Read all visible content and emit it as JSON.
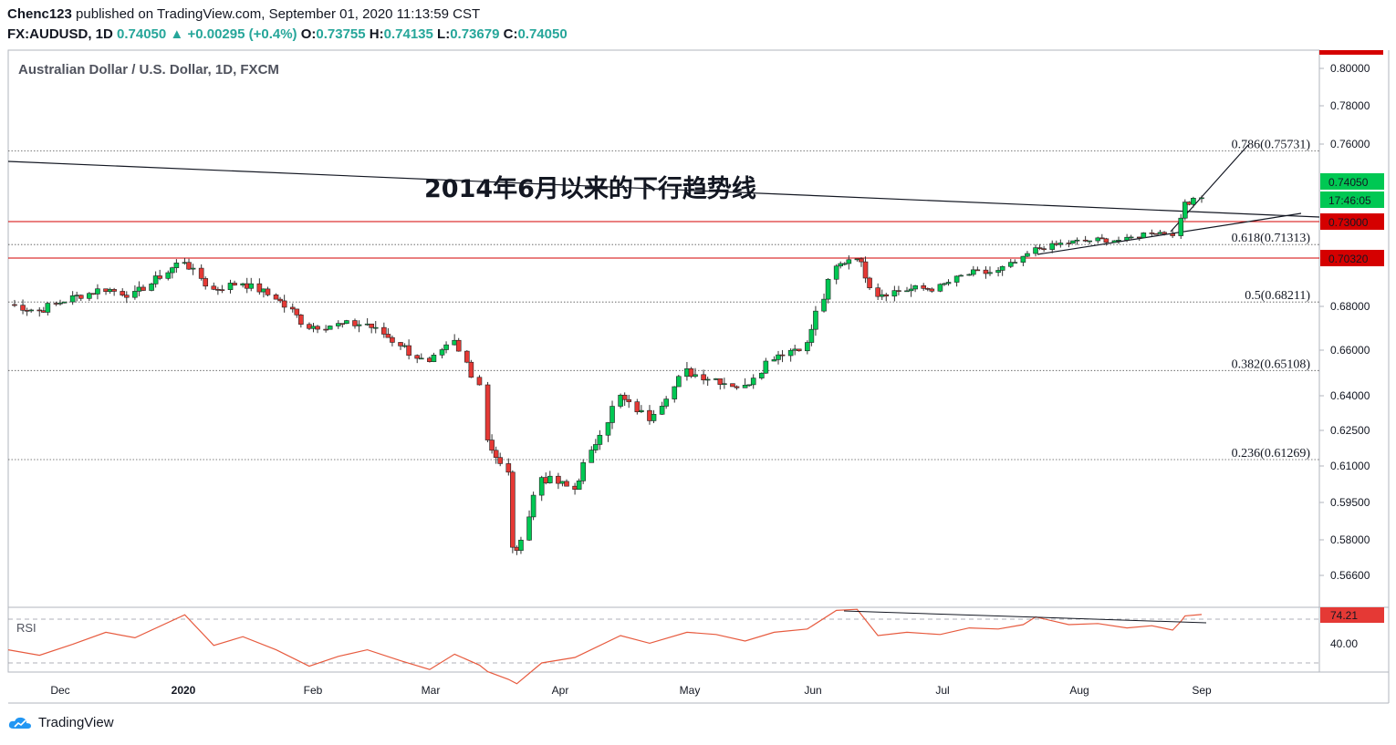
{
  "header": {
    "publisher": "Chenc123",
    "published_text": "published on TradingView.com, September 01, 2020 11:13:59 CST",
    "symbol": "FX:AUDUSD, 1D",
    "last": "0.74050",
    "change": "+0.00295 (+0.4%)",
    "open_label": "O:",
    "open": "0.73755",
    "high_label": "H:",
    "high": "0.74135",
    "low_label": "L:",
    "low": "0.73679",
    "close_label": "C:",
    "close": "0.74050"
  },
  "footer": {
    "brand": "TradingView"
  },
  "colors": {
    "up": "#26a69a",
    "candle_up": "#00c853",
    "candle_down": "#e53935",
    "level_red": "#d50000",
    "rsi_line": "#e75b3f"
  },
  "chart_data": [
    {
      "type": "candlestick",
      "title": "Australian Dollar / U.S. Dollar, 1D, FXCM",
      "annotation": "2014年6月以来的下行趋势线",
      "price_axis_ticks": [
        "0.80000",
        "0.78000",
        "0.76000",
        "0.74050",
        "0.73000",
        "0.70320",
        "0.68000",
        "0.66000",
        "0.64000",
        "0.62500",
        "0.61000",
        "0.59500",
        "0.58000",
        "0.56600"
      ],
      "time_axis_labels": [
        "Dec",
        "2020",
        "Feb",
        "Mar",
        "Apr",
        "May",
        "Jun",
        "Jul",
        "Aug",
        "Sep"
      ],
      "price_badges": [
        {
          "text": "0.74050",
          "kind": "last",
          "color": "#00c853"
        },
        {
          "text": "17:46:05",
          "kind": "countdown",
          "color": "#00c853"
        },
        {
          "text": "0.73000",
          "kind": "level",
          "color": "#d50000"
        },
        {
          "text": "0.70320",
          "kind": "level",
          "color": "#d50000"
        }
      ],
      "horizontal_levels": [
        0.73,
        0.7032
      ],
      "fibonacci": [
        {
          "label": "0.786(0.75731)",
          "price": 0.75731
        },
        {
          "label": "0.618(0.71313)",
          "price": 0.71313
        },
        {
          "label": "0.5(0.68211)",
          "price": 0.68211
        },
        {
          "label": "0.382(0.65108)",
          "price": 0.65108
        },
        {
          "label": "0.236(0.61269)",
          "price": 0.61269
        }
      ],
      "close_path": [
        {
          "date": "2019-11-18",
          "close": 0.6815
        },
        {
          "date": "2019-11-26",
          "close": 0.678
        },
        {
          "date": "2019-12-04",
          "close": 0.684
        },
        {
          "date": "2019-12-12",
          "close": 0.6885
        },
        {
          "date": "2019-12-19",
          "close": 0.6855
        },
        {
          "date": "2019-12-31",
          "close": 0.702
        },
        {
          "date": "2020-01-07",
          "close": 0.688
        },
        {
          "date": "2020-01-14",
          "close": 0.6915
        },
        {
          "date": "2020-01-22",
          "close": 0.6845
        },
        {
          "date": "2020-01-30",
          "close": 0.671
        },
        {
          "date": "2020-02-06",
          "close": 0.6715
        },
        {
          "date": "2020-02-13",
          "close": 0.672
        },
        {
          "date": "2020-02-21",
          "close": 0.663
        },
        {
          "date": "2020-02-28",
          "close": 0.6535
        },
        {
          "date": "2020-03-05",
          "close": 0.6635
        },
        {
          "date": "2020-03-11",
          "close": 0.6455
        },
        {
          "date": "2020-03-13",
          "close": 0.6215
        },
        {
          "date": "2020-03-18",
          "close": 0.6065
        },
        {
          "date": "2020-03-19",
          "close": 0.578
        },
        {
          "date": "2020-03-20",
          "close": 0.574
        },
        {
          "date": "2020-03-26",
          "close": 0.6055
        },
        {
          "date": "2020-04-03",
          "close": 0.6005
        },
        {
          "date": "2020-04-14",
          "close": 0.6395
        },
        {
          "date": "2020-04-21",
          "close": 0.6305
        },
        {
          "date": "2020-04-30",
          "close": 0.6505
        },
        {
          "date": "2020-05-07",
          "close": 0.6475
        },
        {
          "date": "2020-05-14",
          "close": 0.6435
        },
        {
          "date": "2020-05-21",
          "close": 0.6575
        },
        {
          "date": "2020-05-29",
          "close": 0.6625
        },
        {
          "date": "2020-06-05",
          "close": 0.6985
        },
        {
          "date": "2020-06-10",
          "close": 0.7045
        },
        {
          "date": "2020-06-15",
          "close": 0.686
        },
        {
          "date": "2020-06-22",
          "close": 0.688
        },
        {
          "date": "2020-06-30",
          "close": 0.689
        },
        {
          "date": "2020-07-07",
          "close": 0.6955
        },
        {
          "date": "2020-07-14",
          "close": 0.6965
        },
        {
          "date": "2020-07-20",
          "close": 0.7025
        },
        {
          "date": "2020-07-23",
          "close": 0.7095
        },
        {
          "date": "2020-07-31",
          "close": 0.7145
        },
        {
          "date": "2020-08-07",
          "close": 0.7165
        },
        {
          "date": "2020-08-14",
          "close": 0.7165
        },
        {
          "date": "2020-08-20",
          "close": 0.7225
        },
        {
          "date": "2020-08-25",
          "close": 0.7215
        },
        {
          "date": "2020-08-27",
          "close": 0.7295
        },
        {
          "date": "2020-08-28",
          "close": 0.7375
        },
        {
          "date": "2020-09-01",
          "close": 0.7405
        }
      ],
      "ylim": [
        0.555,
        0.806
      ]
    },
    {
      "type": "line",
      "title": "RSI",
      "last_value_badge": "74.21",
      "axis_ticks": [
        "40.00"
      ],
      "bands": [
        70,
        30
      ],
      "series": [
        {
          "name": "RSI",
          "values": [
            {
              "date": "2019-11-18",
              "v": 42
            },
            {
              "date": "2019-11-26",
              "v": 37
            },
            {
              "date": "2019-12-04",
              "v": 47
            },
            {
              "date": "2019-12-12",
              "v": 58
            },
            {
              "date": "2019-12-19",
              "v": 53
            },
            {
              "date": "2019-12-31",
              "v": 74
            },
            {
              "date": "2020-01-07",
              "v": 46
            },
            {
              "date": "2020-01-14",
              "v": 54
            },
            {
              "date": "2020-01-22",
              "v": 42
            },
            {
              "date": "2020-01-30",
              "v": 27
            },
            {
              "date": "2020-02-06",
              "v": 36
            },
            {
              "date": "2020-02-13",
              "v": 42
            },
            {
              "date": "2020-02-21",
              "v": 32
            },
            {
              "date": "2020-02-28",
              "v": 24
            },
            {
              "date": "2020-03-05",
              "v": 38
            },
            {
              "date": "2020-03-11",
              "v": 28
            },
            {
              "date": "2020-03-13",
              "v": 22
            },
            {
              "date": "2020-03-18",
              "v": 15
            },
            {
              "date": "2020-03-20",
              "v": 11
            },
            {
              "date": "2020-03-26",
              "v": 30
            },
            {
              "date": "2020-04-03",
              "v": 35
            },
            {
              "date": "2020-04-14",
              "v": 55
            },
            {
              "date": "2020-04-21",
              "v": 48
            },
            {
              "date": "2020-04-30",
              "v": 58
            },
            {
              "date": "2020-05-07",
              "v": 56
            },
            {
              "date": "2020-05-14",
              "v": 50
            },
            {
              "date": "2020-05-21",
              "v": 58
            },
            {
              "date": "2020-05-29",
              "v": 61
            },
            {
              "date": "2020-06-05",
              "v": 78
            },
            {
              "date": "2020-06-10",
              "v": 79
            },
            {
              "date": "2020-06-15",
              "v": 55
            },
            {
              "date": "2020-06-22",
              "v": 58
            },
            {
              "date": "2020-06-30",
              "v": 56
            },
            {
              "date": "2020-07-07",
              "v": 62
            },
            {
              "date": "2020-07-14",
              "v": 61
            },
            {
              "date": "2020-07-20",
              "v": 65
            },
            {
              "date": "2020-07-23",
              "v": 72
            },
            {
              "date": "2020-07-31",
              "v": 65
            },
            {
              "date": "2020-08-07",
              "v": 66
            },
            {
              "date": "2020-08-14",
              "v": 62
            },
            {
              "date": "2020-08-20",
              "v": 64
            },
            {
              "date": "2020-08-25",
              "v": 60
            },
            {
              "date": "2020-08-27",
              "v": 68
            },
            {
              "date": "2020-08-28",
              "v": 73
            },
            {
              "date": "2020-09-01",
              "v": 74.21
            }
          ]
        }
      ]
    }
  ]
}
